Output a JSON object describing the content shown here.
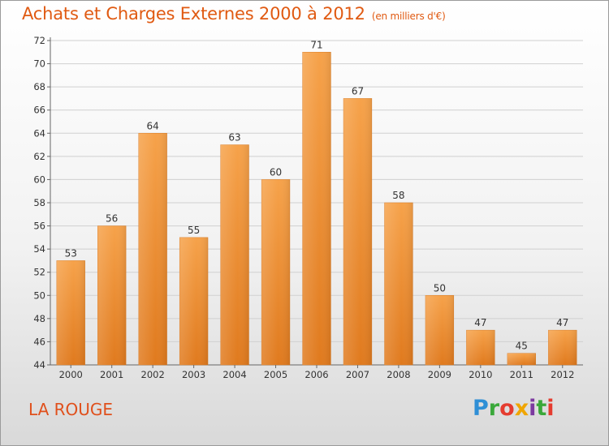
{
  "title": "Achats et Charges Externes 2000 à 2012",
  "unit": "(en milliers d'€)",
  "commune": "LA ROUGE",
  "logo": "Proxiti",
  "colors": {
    "bar_top": "#f6a24a",
    "bar_bottom": "#e07a1e",
    "title": "#e05a12"
  },
  "chart_data": {
    "type": "bar",
    "categories": [
      "2000",
      "2001",
      "2002",
      "2003",
      "2004",
      "2005",
      "2006",
      "2007",
      "2008",
      "2009",
      "2010",
      "2011",
      "2012"
    ],
    "values": [
      53,
      56,
      64,
      55,
      63,
      60,
      71,
      67,
      58,
      50,
      47,
      45,
      47
    ],
    "ylim": [
      44,
      72
    ],
    "yticks": [
      44,
      46,
      48,
      50,
      52,
      54,
      56,
      58,
      60,
      62,
      64,
      66,
      68,
      70,
      72
    ],
    "grid": true
  }
}
